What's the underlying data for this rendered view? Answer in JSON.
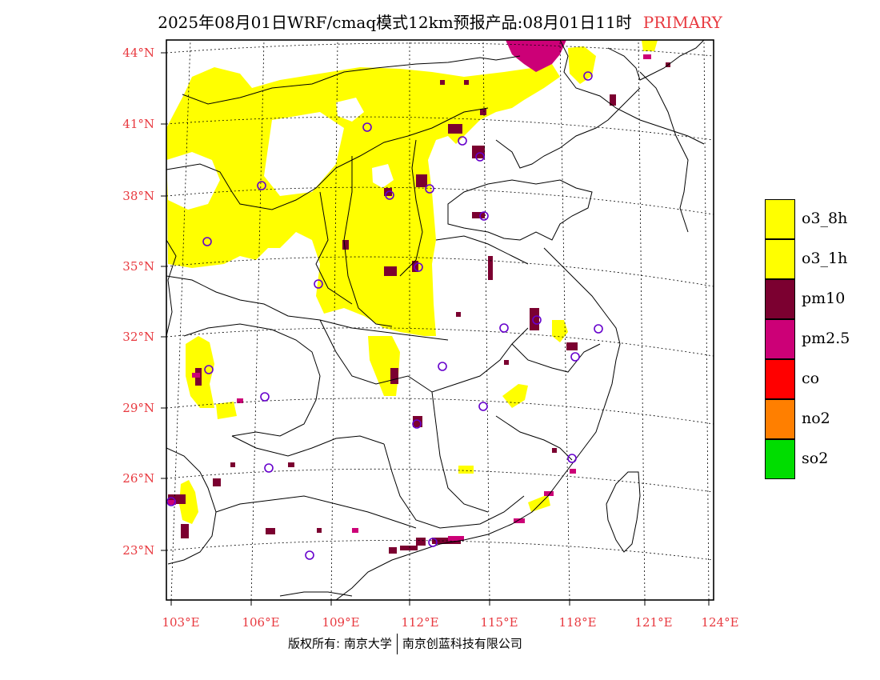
{
  "header": {
    "title": "2025年08月01日WRF/cmaq模式12km预报产品:08月01日11时",
    "tag": "PRIMARY"
  },
  "axes": {
    "lat_labels": [
      "44°N",
      "41°N",
      "38°N",
      "35°N",
      "32°N",
      "29°N",
      "26°N",
      "23°N"
    ],
    "lon_labels": [
      "103°E",
      "106°E",
      "109°E",
      "112°E",
      "115°E",
      "118°E",
      "121°E",
      "124°E"
    ]
  },
  "legend": {
    "items": [
      {
        "label": "o3_8h",
        "color": "#ffff00"
      },
      {
        "label": "o3_1h",
        "color": "#ffff00"
      },
      {
        "label": "pm10",
        "color": "#7b0030"
      },
      {
        "label": "pm2.5",
        "color": "#cc0077"
      },
      {
        "label": "co",
        "color": "#ff0000"
      },
      {
        "label": "no2",
        "color": "#ff7f00"
      },
      {
        "label": "so2",
        "color": "#00dd00"
      }
    ]
  },
  "footer": {
    "copyright": "版权所有: 南京大学",
    "company": "南京创蓝科技有限公司"
  },
  "colors": {
    "accent": "#e8393f",
    "ozone": "#ffff00",
    "pm10": "#7b0030",
    "pm25": "#cc0077",
    "station_marker": "#6600cc"
  }
}
